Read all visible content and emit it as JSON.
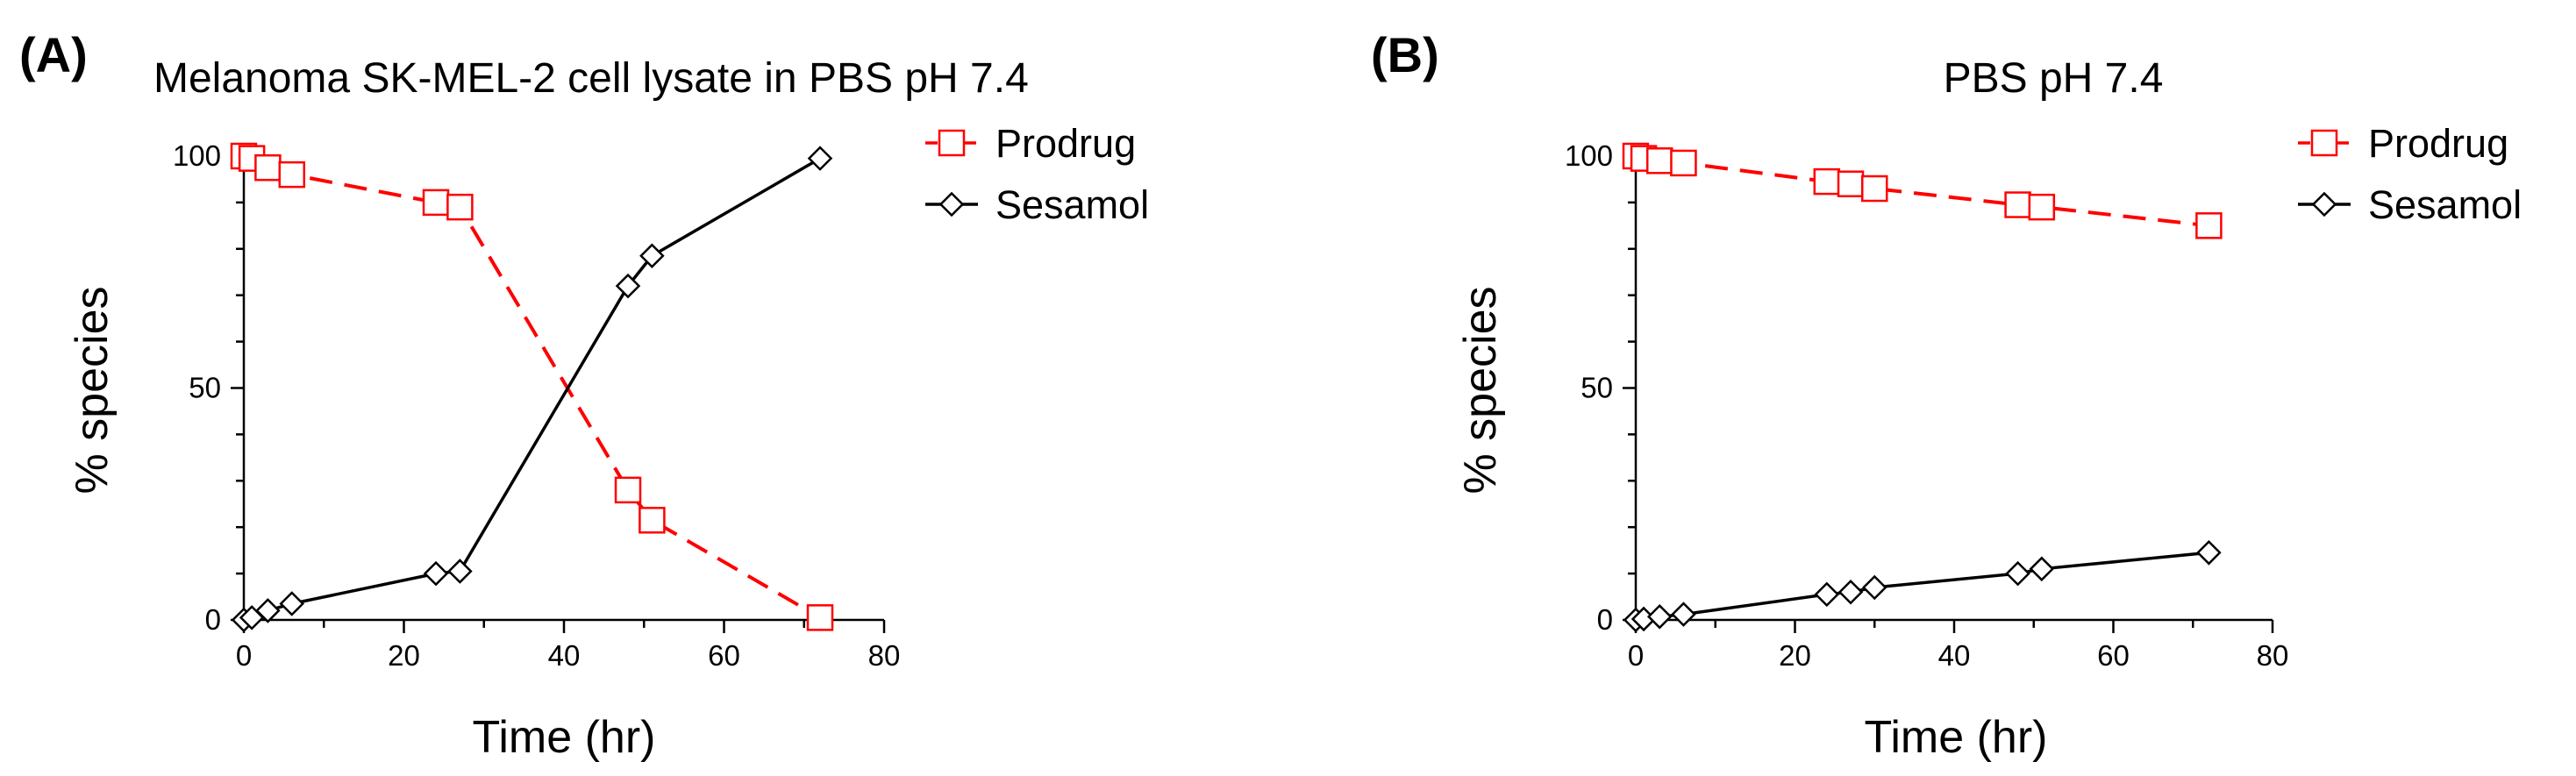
{
  "chart_data": [
    {
      "panel": "(A)",
      "type": "line",
      "title": "Melanoma SK-MEL-2 cell lysate in PBS pH 7.4",
      "xlabel": "Time (hr)",
      "ylabel": "% species",
      "xlim": [
        0,
        80
      ],
      "ylim": [
        0,
        100
      ],
      "xticks": [
        0,
        20,
        40,
        60,
        80
      ],
      "yticks": [
        0,
        50,
        100
      ],
      "grid": false,
      "legend_position": "top-right",
      "series": [
        {
          "name": "Prodrug",
          "color": "#ff0000",
          "marker": "square",
          "dashed": true,
          "points": [
            [
              0,
              100
            ],
            [
              1,
              99.5
            ],
            [
              3,
              97.5
            ],
            [
              6,
              96
            ],
            [
              24,
              90
            ],
            [
              27,
              89
            ],
            [
              48,
              28
            ],
            [
              51,
              21.5
            ],
            [
              72,
              0.5
            ]
          ]
        },
        {
          "name": "Sesamol",
          "color": "#000000",
          "marker": "diamond",
          "dashed": false,
          "points": [
            [
              0,
              0
            ],
            [
              1,
              0.5
            ],
            [
              3,
              2
            ],
            [
              6,
              3.5
            ],
            [
              24,
              10
            ],
            [
              27,
              10.5
            ],
            [
              48,
              72
            ],
            [
              51,
              78.5
            ],
            [
              72,
              99.5
            ]
          ]
        }
      ]
    },
    {
      "panel": "(B)",
      "type": "line",
      "title": "PBS pH 7.4",
      "xlabel": "Time (hr)",
      "ylabel": "% species",
      "xlim": [
        0,
        80
      ],
      "ylim": [
        0,
        100
      ],
      "xticks": [
        0,
        20,
        40,
        60,
        80
      ],
      "yticks": [
        0,
        50,
        100
      ],
      "grid": false,
      "legend_position": "top-right",
      "series": [
        {
          "name": "Prodrug",
          "color": "#ff0000",
          "marker": "square",
          "dashed": true,
          "points": [
            [
              0,
              100
            ],
            [
              1,
              99.5
            ],
            [
              3,
              99
            ],
            [
              6,
              98.5
            ],
            [
              24,
              94.5
            ],
            [
              27,
              94
            ],
            [
              30,
              93
            ],
            [
              48,
              89.5
            ],
            [
              51,
              89
            ],
            [
              72,
              85
            ]
          ]
        },
        {
          "name": "Sesamol",
          "color": "#000000",
          "marker": "diamond",
          "dashed": false,
          "points": [
            [
              0,
              0
            ],
            [
              1,
              0.2
            ],
            [
              3,
              0.7
            ],
            [
              6,
              1.2
            ],
            [
              24,
              5.5
            ],
            [
              27,
              6
            ],
            [
              30,
              7
            ],
            [
              48,
              10
            ],
            [
              51,
              11
            ],
            [
              72,
              14.5
            ]
          ]
        }
      ]
    }
  ]
}
